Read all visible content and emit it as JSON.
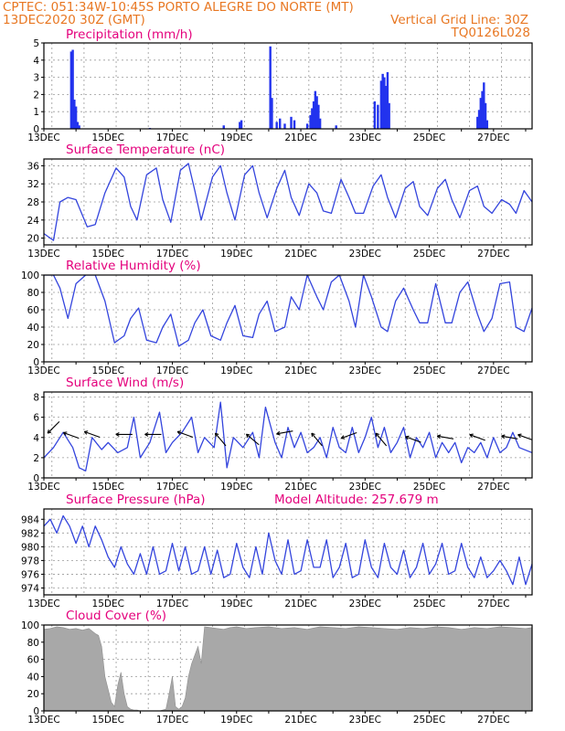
{
  "header": {
    "line1_left": "CPTEC:  051:34W-10:45S  PORTO ALEGRE DO NORTE (MT)",
    "line2_left": "13DEC2020 30Z (GMT)",
    "line2_right": "Vertical Grid Line: 30Z",
    "line3_right": "TQ0126L028"
  },
  "colors": {
    "header_text": "#e87722",
    "panel_title": "#e4007c",
    "series_line": "#3344dd",
    "precip_bars": "#2233ee",
    "cloud_fill": "#a8a8a8",
    "wind_arrows": "#000000",
    "grid": "#9a9a9a"
  },
  "chart_data": [
    {
      "id": "precip",
      "type": "bar",
      "title": "Precipitation (mm/h)",
      "ylim": [
        0,
        5
      ],
      "yticks": [
        0,
        1,
        2,
        3,
        4,
        5
      ],
      "x": [
        "13.9",
        "14.0",
        "20.0",
        "20.5",
        "21.0",
        "23.5",
        "26.6"
      ],
      "values": [
        4.5,
        1.6,
        4.8,
        0.5,
        2.2,
        3.2,
        2.6
      ],
      "x_day_start": 13,
      "x_day_end": 28.2,
      "xtick_labels": [
        "13DEC",
        "15DEC",
        "17DEC",
        "19DEC",
        "21DEC",
        "23DEC",
        "25DEC",
        "27DEC"
      ],
      "bars": [
        [
          13.85,
          4.5
        ],
        [
          13.9,
          4.6
        ],
        [
          13.95,
          1.7
        ],
        [
          14.0,
          1.3
        ],
        [
          14.05,
          0.4
        ],
        [
          14.1,
          0.2
        ],
        [
          16.3,
          0.05
        ],
        [
          18.6,
          0.2
        ],
        [
          19.1,
          0.4
        ],
        [
          19.15,
          0.5
        ],
        [
          20.05,
          4.8
        ],
        [
          20.1,
          1.8
        ],
        [
          20.25,
          0.4
        ],
        [
          20.35,
          0.6
        ],
        [
          20.5,
          0.3
        ],
        [
          20.7,
          0.7
        ],
        [
          20.8,
          0.5
        ],
        [
          21.2,
          0.3
        ],
        [
          21.3,
          0.8
        ],
        [
          21.35,
          1.2
        ],
        [
          21.4,
          1.6
        ],
        [
          21.45,
          2.2
        ],
        [
          21.5,
          1.9
        ],
        [
          21.55,
          1.4
        ],
        [
          21.6,
          0.6
        ],
        [
          22.1,
          0.2
        ],
        [
          23.3,
          1.6
        ],
        [
          23.4,
          1.4
        ],
        [
          23.5,
          2.8
        ],
        [
          23.55,
          3.2
        ],
        [
          23.6,
          3.0
        ],
        [
          23.65,
          2.5
        ],
        [
          23.7,
          3.3
        ],
        [
          23.75,
          1.5
        ],
        [
          26.5,
          0.7
        ],
        [
          26.55,
          1.1
        ],
        [
          26.6,
          1.8
        ],
        [
          26.65,
          2.2
        ],
        [
          26.7,
          2.7
        ],
        [
          26.75,
          1.5
        ],
        [
          26.8,
          0.5
        ]
      ]
    },
    {
      "id": "temp",
      "type": "line",
      "title": "Surface Temperature (nC)",
      "ylim": [
        18.5,
        37.5
      ],
      "yticks": [
        20,
        24,
        28,
        32,
        36
      ],
      "x": [
        13.0,
        13.3,
        13.5,
        13.75,
        14.0,
        14.35,
        14.6,
        14.9,
        15.25,
        15.5,
        15.7,
        15.9,
        16.2,
        16.5,
        16.7,
        16.95,
        17.25,
        17.5,
        17.7,
        17.9,
        18.25,
        18.5,
        18.7,
        18.95,
        19.25,
        19.5,
        19.7,
        19.95,
        20.25,
        20.5,
        20.7,
        20.95,
        21.25,
        21.5,
        21.7,
        21.95,
        22.25,
        22.5,
        22.7,
        22.95,
        23.25,
        23.5,
        23.7,
        23.95,
        24.25,
        24.5,
        24.7,
        24.95,
        25.25,
        25.5,
        25.7,
        25.95,
        26.25,
        26.5,
        26.7,
        26.95,
        27.25,
        27.5,
        27.7,
        27.95,
        28.2
      ],
      "values": [
        21.0,
        19.5,
        28.0,
        29.0,
        28.5,
        22.5,
        23.0,
        30.0,
        35.5,
        33.5,
        27.0,
        24.0,
        34.0,
        35.5,
        28.5,
        23.5,
        35.0,
        36.5,
        30.5,
        24.0,
        33.5,
        36.0,
        30.0,
        24.0,
        34.0,
        36.0,
        30.0,
        24.5,
        31.0,
        35.0,
        29.0,
        25.0,
        32.0,
        30.0,
        26.0,
        25.5,
        33.0,
        29.0,
        25.5,
        25.5,
        31.5,
        34.0,
        29.0,
        24.5,
        31.0,
        32.5,
        27.0,
        25.0,
        31.0,
        33.0,
        28.5,
        24.5,
        30.5,
        31.5,
        27.0,
        25.5,
        28.5,
        27.5,
        25.5,
        30.5,
        28.0
      ]
    },
    {
      "id": "rh",
      "type": "line",
      "title": "Relative Humidity (%)",
      "ylim": [
        0,
        100
      ],
      "yticks": [
        0,
        20,
        40,
        60,
        80,
        100
      ],
      "x": [
        13.0,
        13.3,
        13.5,
        13.75,
        14.0,
        14.3,
        14.6,
        14.9,
        15.2,
        15.5,
        15.7,
        15.95,
        16.2,
        16.5,
        16.7,
        16.95,
        17.2,
        17.5,
        17.7,
        17.95,
        18.2,
        18.5,
        18.7,
        18.95,
        19.2,
        19.5,
        19.7,
        19.95,
        20.2,
        20.5,
        20.7,
        20.95,
        21.2,
        21.5,
        21.7,
        21.95,
        22.2,
        22.5,
        22.7,
        22.95,
        23.2,
        23.5,
        23.7,
        23.95,
        24.2,
        24.5,
        24.7,
        24.95,
        25.2,
        25.5,
        25.7,
        25.95,
        26.2,
        26.5,
        26.7,
        26.95,
        27.2,
        27.5,
        27.7,
        27.95,
        28.2
      ],
      "values": [
        100,
        100,
        85,
        50,
        90,
        100,
        100,
        70,
        22,
        30,
        50,
        62,
        25,
        22,
        40,
        55,
        18,
        25,
        45,
        60,
        30,
        25,
        45,
        65,
        30,
        28,
        55,
        70,
        35,
        40,
        75,
        60,
        100,
        75,
        60,
        92,
        100,
        70,
        40,
        100,
        75,
        40,
        35,
        70,
        85,
        60,
        45,
        45,
        90,
        45,
        45,
        80,
        92,
        55,
        35,
        50,
        90,
        92,
        40,
        35,
        62
      ]
    },
    {
      "id": "wind",
      "type": "line",
      "title": "Surface Wind (m/s)",
      "ylim": [
        0,
        8.5
      ],
      "yticks": [
        0,
        2,
        4,
        6,
        8
      ],
      "x": [
        13.0,
        13.3,
        13.6,
        13.9,
        14.1,
        14.3,
        14.5,
        14.8,
        15.0,
        15.3,
        15.6,
        15.8,
        16.0,
        16.3,
        16.6,
        16.8,
        17.0,
        17.3,
        17.6,
        17.8,
        18.0,
        18.3,
        18.5,
        18.7,
        18.9,
        19.2,
        19.5,
        19.7,
        19.9,
        20.2,
        20.4,
        20.6,
        20.8,
        21.0,
        21.2,
        21.4,
        21.6,
        21.8,
        22.0,
        22.2,
        22.4,
        22.6,
        22.8,
        23.0,
        23.2,
        23.4,
        23.6,
        23.8,
        24.0,
        24.2,
        24.4,
        24.6,
        24.8,
        25.0,
        25.2,
        25.4,
        25.6,
        25.8,
        26.0,
        26.2,
        26.4,
        26.6,
        26.8,
        27.0,
        27.2,
        27.4,
        27.6,
        27.8,
        28.2
      ],
      "values": [
        2.0,
        3.0,
        4.5,
        3.0,
        1.0,
        0.7,
        4.0,
        2.8,
        3.5,
        2.5,
        3.0,
        6.0,
        2.0,
        3.5,
        6.5,
        2.5,
        3.5,
        4.5,
        6.0,
        2.5,
        4.0,
        3.0,
        7.5,
        1.0,
        4.0,
        3.0,
        4.5,
        2.0,
        7.0,
        3.5,
        2.0,
        5.0,
        3.0,
        4.5,
        2.5,
        3.0,
        4.0,
        2.0,
        5.0,
        3.0,
        2.5,
        5.0,
        2.5,
        4.0,
        6.0,
        3.0,
        5.0,
        2.5,
        3.5,
        5.0,
        2.0,
        4.0,
        3.0,
        4.5,
        2.0,
        3.5,
        2.5,
        3.5,
        1.5,
        3.0,
        2.5,
        3.5,
        2.0,
        4.0,
        2.5,
        3.0,
        4.5,
        3.0,
        2.5
      ],
      "arrows": [
        [
          13.3,
          5.0,
          135
        ],
        [
          13.85,
          4.2,
          200
        ],
        [
          14.5,
          4.3,
          200
        ],
        [
          15.5,
          4.3,
          180
        ],
        [
          16.4,
          4.3,
          180
        ],
        [
          17.4,
          4.3,
          200
        ],
        [
          18.5,
          3.8,
          230
        ],
        [
          19.5,
          3.8,
          220
        ],
        [
          20.5,
          4.5,
          170
        ],
        [
          21.5,
          3.8,
          230
        ],
        [
          22.5,
          4.2,
          160
        ],
        [
          23.5,
          3.8,
          230
        ],
        [
          24.5,
          3.8,
          200
        ],
        [
          25.5,
          4.0,
          190
        ],
        [
          26.5,
          4.0,
          200
        ],
        [
          27.5,
          4.0,
          190
        ],
        [
          28.0,
          4.0,
          200
        ]
      ]
    },
    {
      "id": "pres",
      "type": "line",
      "title": "Surface Pressure (hPa)",
      "annotation": "Model Altitude: 257.679 m",
      "ylim": [
        973,
        985.5
      ],
      "yticks": [
        974,
        976,
        978,
        980,
        982,
        984
      ],
      "x": [
        13.0,
        13.2,
        13.4,
        13.6,
        13.8,
        14.0,
        14.2,
        14.4,
        14.6,
        14.8,
        15.0,
        15.2,
        15.4,
        15.6,
        15.8,
        16.0,
        16.2,
        16.4,
        16.6,
        16.8,
        17.0,
        17.2,
        17.4,
        17.6,
        17.8,
        18.0,
        18.2,
        18.4,
        18.6,
        18.8,
        19.0,
        19.2,
        19.4,
        19.6,
        19.8,
        20.0,
        20.2,
        20.4,
        20.6,
        20.8,
        21.0,
        21.2,
        21.4,
        21.6,
        21.8,
        22.0,
        22.2,
        22.4,
        22.6,
        22.8,
        23.0,
        23.2,
        23.4,
        23.6,
        23.8,
        24.0,
        24.2,
        24.4,
        24.6,
        24.8,
        25.0,
        25.2,
        25.4,
        25.6,
        25.8,
        26.0,
        26.2,
        26.4,
        26.6,
        26.8,
        27.0,
        27.2,
        27.4,
        27.6,
        27.8,
        28.0,
        28.2
      ],
      "values": [
        983.0,
        984.0,
        982.0,
        984.5,
        983.0,
        980.5,
        983.0,
        980.0,
        983.0,
        981.0,
        978.5,
        977.0,
        980.0,
        977.5,
        976.0,
        979.0,
        976.0,
        980.0,
        976.0,
        976.5,
        980.5,
        976.5,
        980.0,
        976.0,
        976.5,
        980.0,
        976.0,
        979.5,
        975.5,
        976.0,
        980.5,
        977.0,
        975.5,
        980.0,
        976.0,
        982.0,
        978.0,
        976.0,
        981.0,
        976.0,
        976.5,
        981.0,
        977.0,
        977.0,
        981.0,
        975.5,
        977.0,
        980.5,
        975.5,
        976.0,
        981.0,
        977.0,
        975.5,
        980.5,
        977.0,
        976.0,
        979.5,
        975.5,
        977.0,
        980.5,
        976.0,
        977.5,
        980.5,
        976.0,
        976.5,
        980.5,
        977.0,
        975.5,
        978.5,
        975.5,
        976.5,
        978.0,
        976.5,
        974.5,
        978.5,
        974.5,
        977.5
      ]
    },
    {
      "id": "cloud",
      "type": "area",
      "title": "Cloud Cover (%)",
      "ylim": [
        0,
        100
      ],
      "yticks": [
        0,
        20,
        40,
        60,
        80,
        100
      ],
      "x": [
        13.0,
        13.2,
        13.4,
        13.6,
        13.8,
        14.0,
        14.2,
        14.4,
        14.6,
        14.7,
        14.8,
        14.9,
        15.0,
        15.1,
        15.2,
        15.3,
        15.4,
        15.5,
        15.6,
        15.7,
        15.8,
        15.9,
        16.0,
        16.2,
        16.4,
        16.6,
        16.8,
        16.9,
        17.0,
        17.1,
        17.2,
        17.3,
        17.4,
        17.5,
        17.6,
        17.7,
        17.8,
        17.9,
        18.0,
        18.2,
        18.4,
        18.6,
        18.8,
        19.0,
        19.3,
        19.6,
        20.0,
        20.4,
        20.8,
        21.2,
        21.6,
        22.0,
        22.4,
        22.8,
        23.2,
        23.6,
        24.0,
        24.4,
        24.8,
        25.2,
        25.6,
        26.0,
        26.4,
        26.8,
        27.2,
        27.6,
        28.0,
        28.2
      ],
      "values": [
        95,
        96,
        98,
        97,
        95,
        96,
        94,
        96,
        90,
        88,
        75,
        40,
        25,
        10,
        5,
        30,
        45,
        20,
        5,
        2,
        1,
        1,
        0,
        0,
        0,
        0,
        2,
        20,
        40,
        5,
        2,
        5,
        15,
        40,
        55,
        65,
        75,
        55,
        98,
        97,
        96,
        95,
        97,
        98,
        96,
        97,
        98,
        96,
        97,
        95,
        98,
        97,
        96,
        98,
        97,
        96,
        95,
        97,
        96,
        98,
        97,
        95,
        97,
        96,
        98,
        97,
        96,
        97
      ]
    }
  ]
}
